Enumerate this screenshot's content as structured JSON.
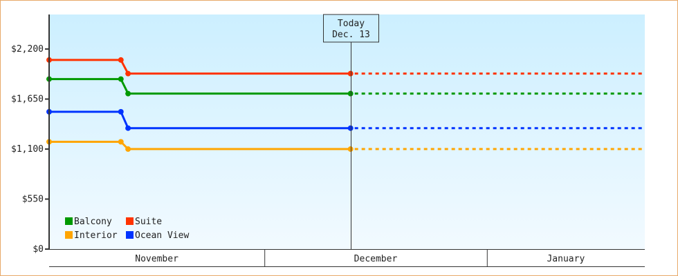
{
  "chart_data": {
    "type": "line",
    "title": "",
    "xlabel": "",
    "ylabel": "",
    "ylim": [
      0,
      2580
    ],
    "yticks": [
      0,
      550,
      1100,
      1650,
      2200
    ],
    "ytick_labels": [
      "$0",
      "$550",
      "$1,100",
      "$1,650",
      "$2,200"
    ],
    "x_range": [
      "2013-11-01",
      "2014-01-23"
    ],
    "months": [
      {
        "label": "November",
        "start": "2013-11-01",
        "end": "2013-12-01"
      },
      {
        "label": "December",
        "start": "2013-12-01",
        "end": "2014-01-01"
      },
      {
        "label": "January",
        "start": "2014-01-01",
        "end": "2014-01-23"
      }
    ],
    "today": {
      "line1": "Today",
      "line2": "Dec. 13",
      "date": "2013-12-13"
    },
    "projection": "dashed from today to end of range",
    "legend_position": "bottom-left",
    "series": [
      {
        "name": "Suite",
        "color": "#ff3300",
        "x": [
          "2013-11-01",
          "2013-11-11",
          "2013-11-12",
          "2013-12-13"
        ],
        "values": [
          2080,
          2080,
          1930,
          1930
        ]
      },
      {
        "name": "Balcony",
        "color": "#009900",
        "x": [
          "2013-11-01",
          "2013-11-11",
          "2013-11-12",
          "2013-12-13"
        ],
        "values": [
          1870,
          1870,
          1710,
          1710
        ]
      },
      {
        "name": "Ocean View",
        "color": "#0033ff",
        "x": [
          "2013-11-01",
          "2013-11-11",
          "2013-11-12",
          "2013-12-13"
        ],
        "values": [
          1510,
          1510,
          1330,
          1330
        ]
      },
      {
        "name": "Interior",
        "color": "#ffa500",
        "x": [
          "2013-11-01",
          "2013-11-11",
          "2013-11-12",
          "2013-12-13"
        ],
        "values": [
          1180,
          1180,
          1100,
          1100
        ]
      }
    ],
    "legend_order": [
      "Balcony",
      "Suite",
      "Interior",
      "Ocean View"
    ],
    "grid": false
  }
}
